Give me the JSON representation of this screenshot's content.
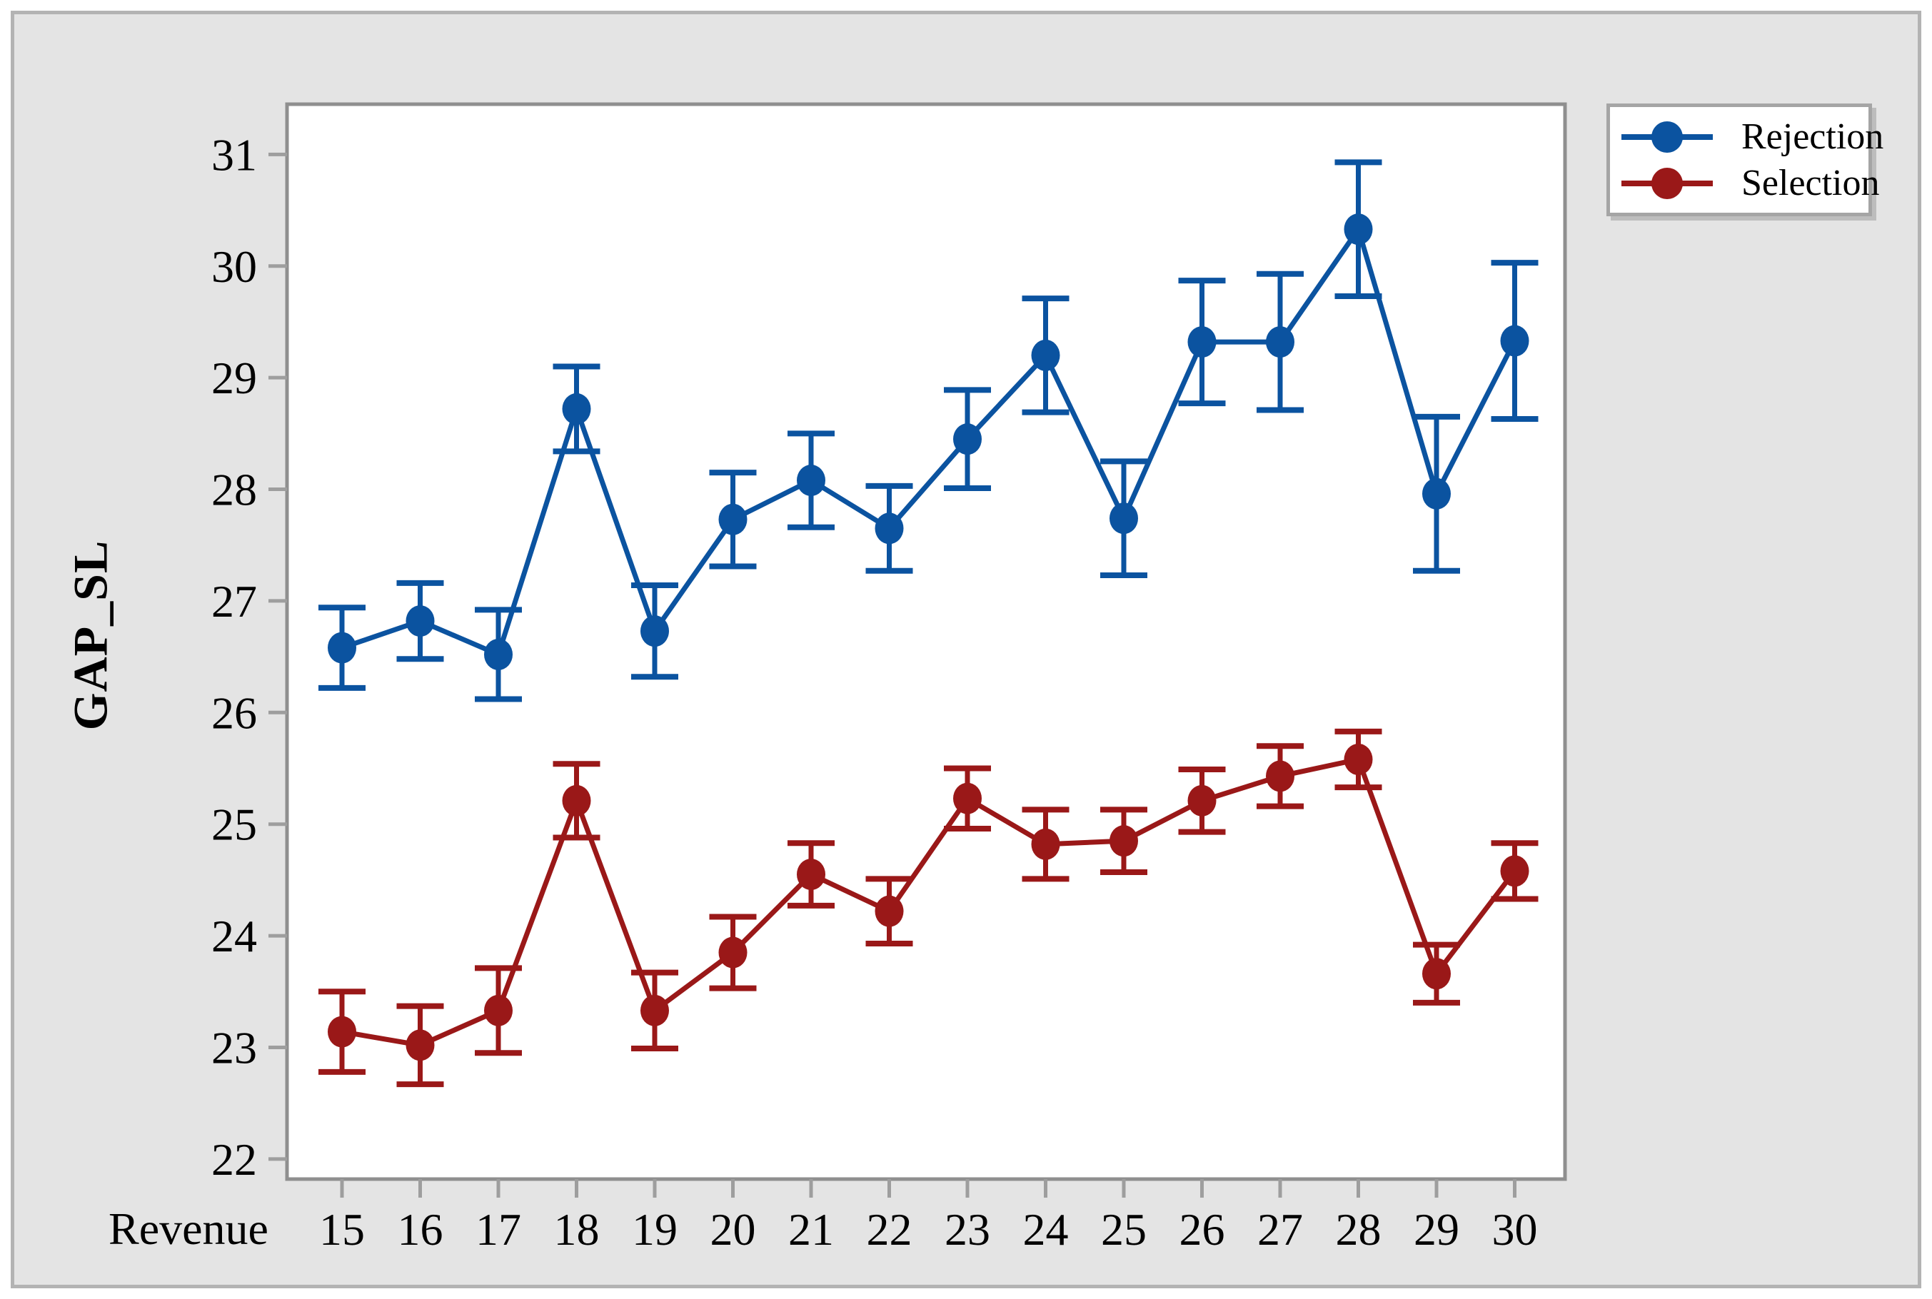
{
  "figure": {
    "y_axis_title": "GAP_SL",
    "x_axis_title": "Revenue",
    "legend": [
      {
        "label": "Rejection",
        "color": "#0b53a0"
      },
      {
        "label": "Selection",
        "color": "#9a1818"
      }
    ]
  },
  "chart_data": {
    "type": "line",
    "title": "",
    "xlabel": "Revenue",
    "ylabel": "GAP_SL",
    "x": [
      15,
      16,
      17,
      18,
      19,
      20,
      21,
      22,
      23,
      24,
      25,
      26,
      27,
      28,
      29,
      30
    ],
    "yticks": [
      22,
      23,
      24,
      25,
      26,
      27,
      28,
      29,
      30,
      31
    ],
    "ylim": [
      21.82,
      31.45
    ],
    "grid": false,
    "error_bars": true,
    "legend_position": "top-right",
    "marker": "circle",
    "series": [
      {
        "name": "Rejection",
        "color": "#0b53a0",
        "values": [
          26.58,
          26.82,
          26.52,
          28.72,
          26.73,
          27.73,
          28.08,
          27.65,
          28.45,
          29.2,
          27.74,
          29.32,
          29.32,
          30.33,
          27.96,
          29.33
        ],
        "error": [
          0.36,
          0.34,
          0.4,
          0.38,
          0.41,
          0.42,
          0.42,
          0.38,
          0.44,
          0.51,
          0.51,
          0.55,
          0.61,
          0.6,
          0.69,
          0.7
        ]
      },
      {
        "name": "Selection",
        "color": "#9a1818",
        "values": [
          23.14,
          23.02,
          23.33,
          25.21,
          23.33,
          23.85,
          24.55,
          24.22,
          25.23,
          24.82,
          24.85,
          25.21,
          25.43,
          25.58,
          23.66,
          24.58
        ],
        "error": [
          0.36,
          0.35,
          0.38,
          0.33,
          0.34,
          0.32,
          0.28,
          0.29,
          0.27,
          0.31,
          0.28,
          0.28,
          0.27,
          0.25,
          0.26,
          0.25
        ]
      }
    ]
  }
}
